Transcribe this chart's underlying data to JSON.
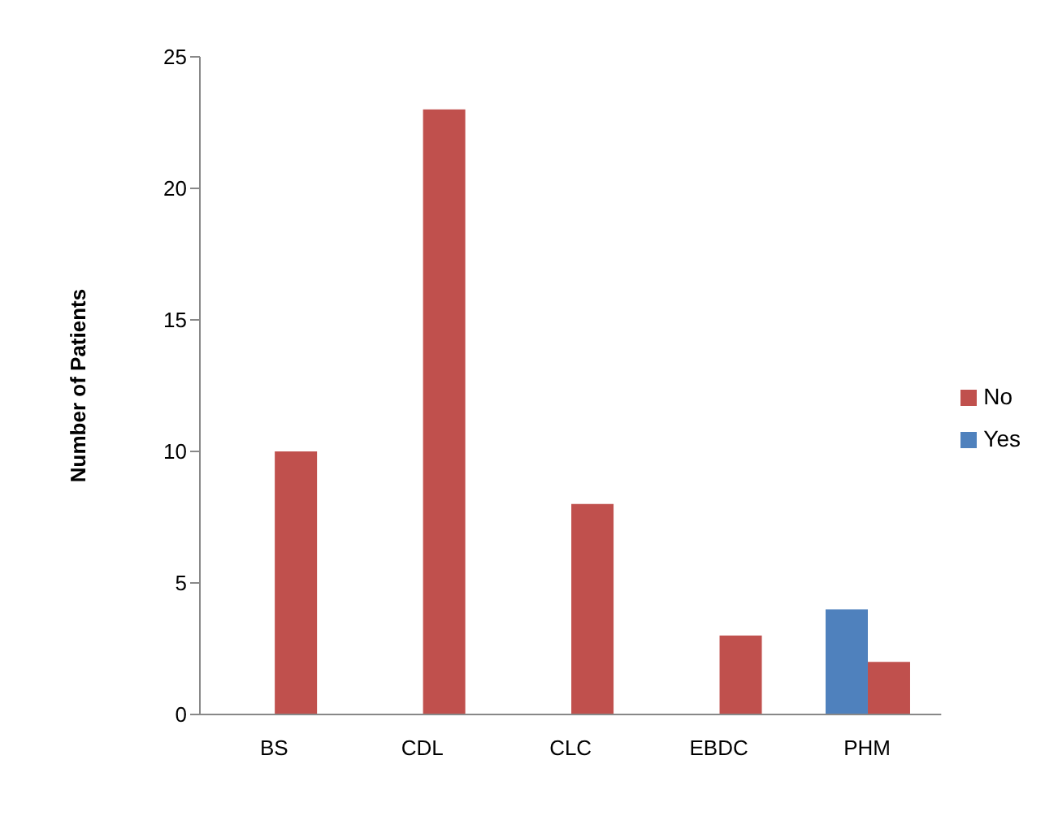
{
  "chart_data": {
    "type": "bar",
    "ylabel": "Number of Patients",
    "categories": [
      "BS",
      "CDL",
      "CLC",
      "EBDC",
      "PHM"
    ],
    "series": [
      {
        "name": "Yes",
        "color": "#4f81bd",
        "values": [
          0,
          0,
          0,
          0,
          4
        ]
      },
      {
        "name": "No",
        "color": "#c0504d",
        "values": [
          10,
          23,
          8,
          3,
          2
        ]
      }
    ],
    "ylim": [
      0,
      25
    ],
    "yticks": [
      0,
      5,
      10,
      15,
      20,
      25
    ],
    "grid": false,
    "legend": "right"
  }
}
